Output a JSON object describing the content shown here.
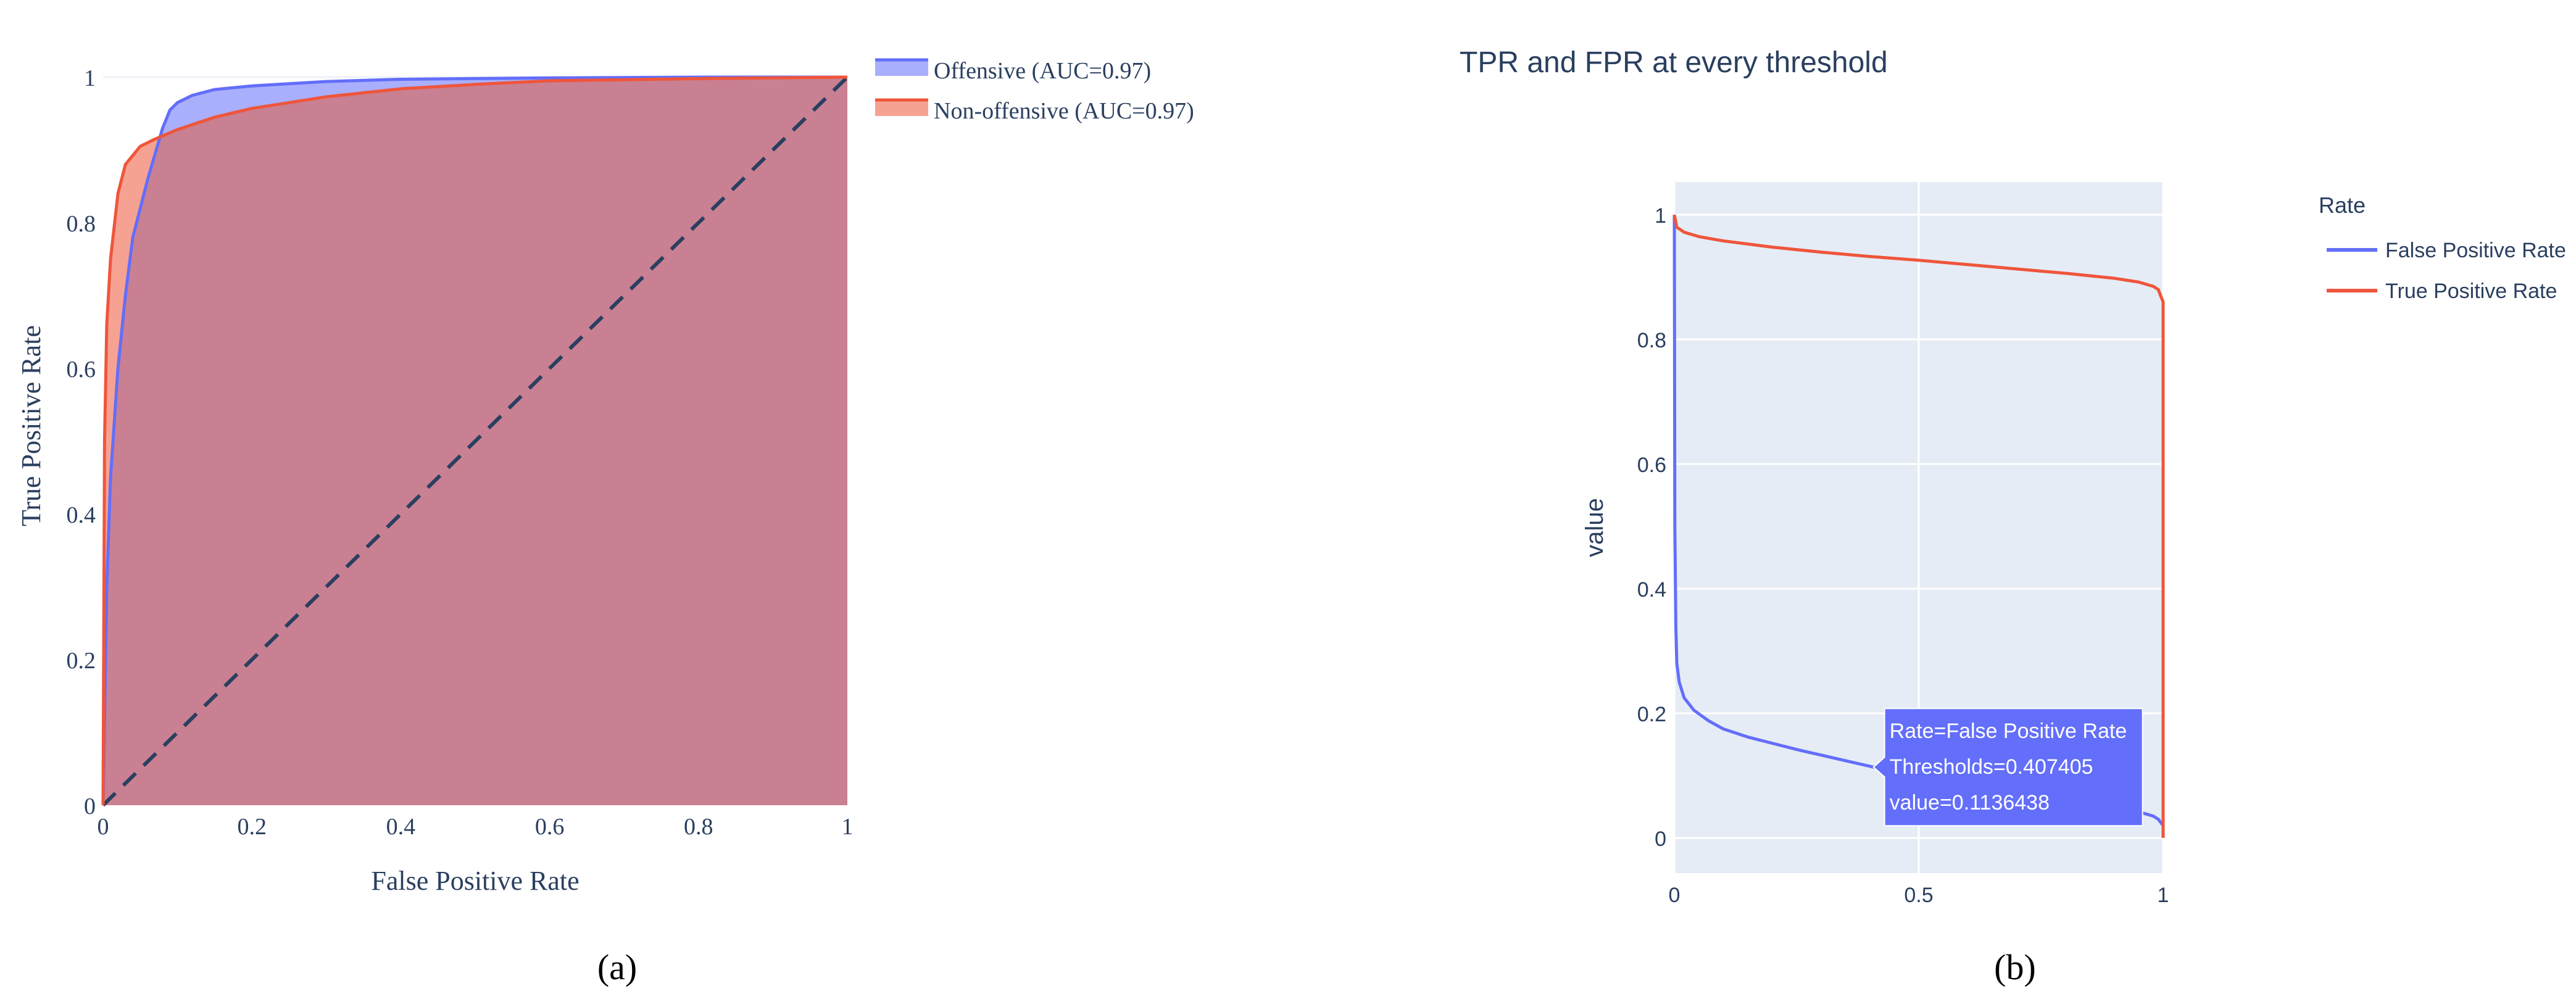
{
  "panel_a": {
    "caption": "(a)",
    "xlabel": "False Positive Rate",
    "ylabel": "True Positive Rate",
    "legend": [
      "Offensive (AUC=0.97)",
      "Non-offensive (AUC=0.97)"
    ]
  },
  "panel_b": {
    "caption": "(b)",
    "title": "TPR and FPR at every threshold",
    "ylabel": "value",
    "legend_title": "Rate",
    "legend": [
      "False Positive Rate",
      "True Positive Rate"
    ],
    "tooltip": [
      "Rate=False Positive Rate",
      "Thresholds=0.407405",
      "value=0.1136438"
    ]
  },
  "colors": {
    "offensive": "#636efa",
    "non_offensive": "#ef553b",
    "overlap_fill": "#c98092",
    "plot_bg_b": "#e5ecf6",
    "axis_text_a": "#2a3f5f",
    "diagonal": "#2a3f5f"
  },
  "chart_data": [
    {
      "type": "area",
      "xlabel": "False Positive Rate",
      "ylabel": "True Positive Rate",
      "xlim": [
        0,
        1
      ],
      "ylim": [
        0,
        1
      ],
      "x_ticks": [
        "0",
        "0.2",
        "0.4",
        "0.6",
        "0.8",
        "1"
      ],
      "y_ticks": [
        "0",
        "0.2",
        "0.4",
        "0.6",
        "0.8",
        "1"
      ],
      "legend_position": "top-right outside",
      "grid": false,
      "reference_line": {
        "style": "dashed",
        "from": [
          0,
          0
        ],
        "to": [
          1,
          1
        ]
      },
      "series": [
        {
          "name": "Offensive (AUC=0.97)",
          "x": [
            0,
            0.005,
            0.01,
            0.02,
            0.03,
            0.04,
            0.06,
            0.08,
            0.09,
            0.1,
            0.12,
            0.15,
            0.2,
            0.3,
            0.4,
            0.6,
            0.8,
            1
          ],
          "y": [
            0,
            0.3,
            0.45,
            0.6,
            0.7,
            0.78,
            0.86,
            0.93,
            0.955,
            0.965,
            0.975,
            0.983,
            0.988,
            0.994,
            0.997,
            0.999,
            1,
            1
          ]
        },
        {
          "name": "Non-offensive (AUC=0.97)",
          "x": [
            0,
            0.002,
            0.005,
            0.01,
            0.02,
            0.03,
            0.05,
            0.07,
            0.1,
            0.15,
            0.2,
            0.3,
            0.4,
            0.5,
            0.6,
            0.8,
            1
          ],
          "y": [
            0,
            0.5,
            0.66,
            0.75,
            0.84,
            0.88,
            0.905,
            0.915,
            0.928,
            0.945,
            0.957,
            0.973,
            0.984,
            0.99,
            0.995,
            0.998,
            1
          ]
        }
      ]
    },
    {
      "type": "line",
      "title": "TPR and FPR at every threshold",
      "xlabel": "",
      "ylabel": "value",
      "xlim": [
        0,
        1
      ],
      "ylim": [
        0,
        1
      ],
      "x_ticks": [
        "0",
        "0.5",
        "1"
      ],
      "y_ticks": [
        "0",
        "0.2",
        "0.4",
        "0.6",
        "0.8",
        "1"
      ],
      "legend_title": "Rate",
      "legend_position": "top-right outside",
      "grid": true,
      "series": [
        {
          "name": "False Positive Rate",
          "x": [
            0,
            0.001,
            0.003,
            0.005,
            0.01,
            0.02,
            0.04,
            0.07,
            0.1,
            0.15,
            0.2,
            0.25,
            0.3,
            0.35,
            0.407405,
            0.5,
            0.6,
            0.7,
            0.8,
            0.9,
            0.95,
            0.98,
            0.99,
            1
          ],
          "y": [
            1,
            0.5,
            0.34,
            0.28,
            0.25,
            0.225,
            0.205,
            0.188,
            0.175,
            0.162,
            0.152,
            0.142,
            0.133,
            0.124,
            0.1136438,
            0.1,
            0.087,
            0.075,
            0.062,
            0.05,
            0.042,
            0.035,
            0.03,
            0.02
          ]
        },
        {
          "name": "True Positive Rate",
          "x": [
            0,
            0.005,
            0.02,
            0.05,
            0.1,
            0.2,
            0.3,
            0.4,
            0.5,
            0.6,
            0.7,
            0.8,
            0.9,
            0.95,
            0.98,
            0.99,
            0.995,
            1,
            1
          ],
          "y": [
            1,
            0.98,
            0.972,
            0.965,
            0.958,
            0.948,
            0.94,
            0.933,
            0.927,
            0.92,
            0.913,
            0.906,
            0.898,
            0.892,
            0.885,
            0.88,
            0.87,
            0.86,
            0
          ]
        }
      ],
      "hover": {
        "series": "False Positive Rate",
        "x": 0.407405,
        "y": 0.1136438,
        "lines": [
          "Rate=False Positive Rate",
          "Thresholds=0.407405",
          "value=0.1136438"
        ]
      }
    }
  ]
}
